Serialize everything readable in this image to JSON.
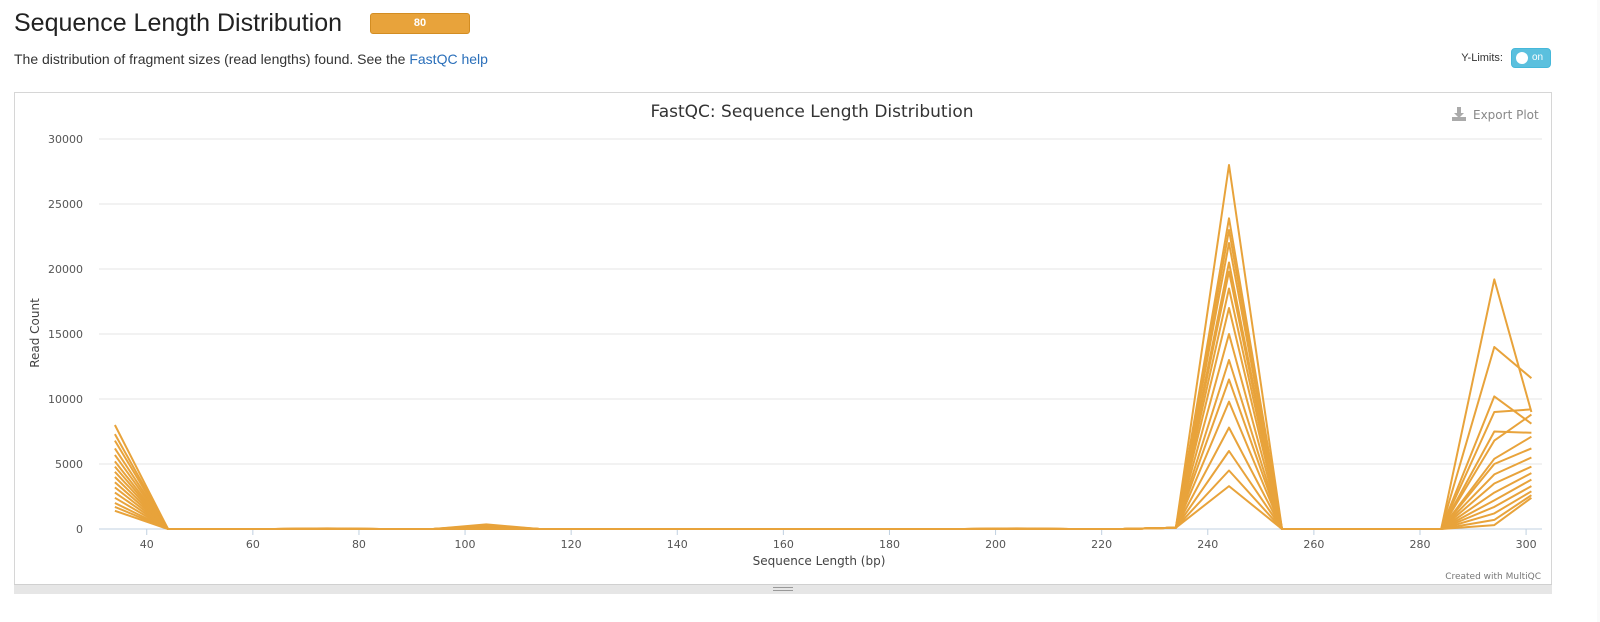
{
  "header": {
    "title": "Sequence Length Distribution",
    "badge": "80",
    "description_prefix": "The distribution of fragment sizes (read lengths) found. See the ",
    "help_link": "FastQC help"
  },
  "controls": {
    "ylimits_label": "Y-Limits:",
    "toggle_label": "on",
    "export_label": "Export Plot",
    "credit": "Created with MultiQC"
  },
  "colors": {
    "series": "#e8a33b",
    "badge": "#e8a33b",
    "toggle": "#5bc0de",
    "link": "#2a6fba"
  },
  "chart_data": {
    "type": "line",
    "title": "FastQC: Sequence Length Distribution",
    "xlabel": "Sequence Length (bp)",
    "ylabel": "Read Count",
    "xlim": [
      31,
      303
    ],
    "ylim": [
      0,
      30000
    ],
    "xticks": [
      40,
      60,
      80,
      100,
      120,
      140,
      160,
      180,
      200,
      220,
      240,
      260,
      280,
      300
    ],
    "yticks": [
      0,
      5000,
      10000,
      15000,
      20000,
      25000,
      30000
    ],
    "grid": true,
    "legend": "none",
    "x": [
      34,
      44,
      54,
      64,
      74,
      84,
      94,
      104,
      114,
      124,
      134,
      144,
      154,
      164,
      174,
      184,
      194,
      204,
      214,
      224,
      234,
      244,
      254,
      264,
      274,
      284,
      294,
      301
    ],
    "series": [
      {
        "values": [
          8000,
          0,
          0,
          0,
          50,
          0,
          0,
          350,
          0,
          0,
          0,
          0,
          0,
          0,
          0,
          0,
          0,
          50,
          0,
          0,
          100,
          28000,
          0,
          0,
          0,
          0,
          19200,
          9000
        ]
      },
      {
        "values": [
          7300,
          0,
          0,
          0,
          40,
          0,
          0,
          300,
          0,
          0,
          0,
          0,
          0,
          0,
          0,
          0,
          0,
          40,
          0,
          0,
          100,
          23900,
          0,
          0,
          0,
          0,
          14000,
          11600
        ]
      },
      {
        "values": [
          6800,
          0,
          0,
          0,
          30,
          0,
          0,
          250,
          0,
          0,
          0,
          0,
          0,
          0,
          0,
          0,
          0,
          30,
          0,
          0,
          100,
          23000,
          0,
          0,
          0,
          0,
          10200,
          8100
        ]
      },
      {
        "values": [
          6200,
          0,
          0,
          0,
          30,
          0,
          0,
          200,
          0,
          0,
          0,
          0,
          0,
          0,
          0,
          0,
          0,
          30,
          0,
          0,
          100,
          22000,
          0,
          0,
          0,
          0,
          9000,
          9200
        ]
      },
      {
        "values": [
          5700,
          0,
          0,
          0,
          20,
          0,
          0,
          150,
          0,
          0,
          0,
          0,
          0,
          0,
          0,
          0,
          0,
          20,
          0,
          0,
          100,
          20500,
          0,
          0,
          0,
          0,
          7500,
          7400
        ]
      },
      {
        "values": [
          5200,
          0,
          0,
          0,
          20,
          0,
          0,
          120,
          0,
          0,
          0,
          0,
          0,
          0,
          0,
          0,
          0,
          20,
          0,
          0,
          100,
          19800,
          0,
          0,
          0,
          0,
          6800,
          8800
        ]
      },
      {
        "values": [
          4800,
          0,
          0,
          0,
          20,
          0,
          0,
          100,
          0,
          0,
          0,
          0,
          0,
          0,
          0,
          0,
          0,
          20,
          0,
          0,
          100,
          18500,
          0,
          0,
          0,
          0,
          5400,
          7100
        ]
      },
      {
        "values": [
          4400,
          0,
          0,
          0,
          10,
          0,
          0,
          80,
          0,
          0,
          0,
          0,
          0,
          0,
          0,
          0,
          0,
          10,
          0,
          0,
          100,
          17000,
          0,
          0,
          0,
          0,
          5000,
          6200
        ]
      },
      {
        "values": [
          4000,
          0,
          0,
          0,
          10,
          0,
          0,
          60,
          0,
          0,
          0,
          0,
          0,
          0,
          0,
          0,
          0,
          10,
          0,
          0,
          100,
          15000,
          0,
          0,
          0,
          0,
          4200,
          5500
        ]
      },
      {
        "values": [
          3600,
          0,
          0,
          0,
          10,
          0,
          0,
          50,
          0,
          0,
          0,
          0,
          0,
          0,
          0,
          0,
          0,
          10,
          0,
          0,
          100,
          13000,
          0,
          0,
          0,
          0,
          3500,
          4800
        ]
      },
      {
        "values": [
          3200,
          0,
          0,
          0,
          0,
          0,
          0,
          40,
          0,
          0,
          0,
          0,
          0,
          0,
          0,
          0,
          0,
          0,
          0,
          0,
          100,
          11500,
          0,
          0,
          0,
          0,
          2800,
          4300
        ]
      },
      {
        "values": [
          2800,
          0,
          0,
          0,
          0,
          0,
          0,
          30,
          0,
          0,
          0,
          0,
          0,
          0,
          0,
          0,
          0,
          0,
          0,
          0,
          100,
          9800,
          0,
          0,
          0,
          0,
          2200,
          3800
        ]
      },
      {
        "values": [
          2400,
          0,
          0,
          0,
          0,
          0,
          0,
          20,
          0,
          0,
          0,
          0,
          0,
          0,
          0,
          0,
          0,
          0,
          0,
          0,
          100,
          7800,
          0,
          0,
          0,
          0,
          1700,
          3300
        ]
      },
      {
        "values": [
          2000,
          0,
          0,
          0,
          0,
          0,
          0,
          20,
          0,
          0,
          0,
          0,
          0,
          0,
          0,
          0,
          0,
          0,
          0,
          0,
          100,
          6000,
          0,
          0,
          0,
          0,
          1200,
          2900
        ]
      },
      {
        "values": [
          1700,
          0,
          0,
          0,
          0,
          0,
          0,
          10,
          0,
          0,
          0,
          0,
          0,
          0,
          0,
          0,
          0,
          0,
          0,
          0,
          100,
          4500,
          0,
          0,
          0,
          0,
          700,
          2600
        ]
      },
      {
        "values": [
          1400,
          0,
          0,
          0,
          0,
          0,
          0,
          10,
          0,
          0,
          0,
          0,
          0,
          0,
          0,
          0,
          0,
          0,
          0,
          0,
          100,
          3300,
          0,
          0,
          0,
          0,
          300,
          2400
        ]
      }
    ]
  }
}
